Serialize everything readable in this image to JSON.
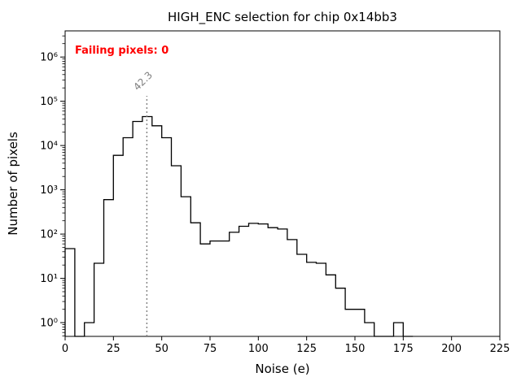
{
  "chart_data": {
    "type": "histogram",
    "title": "HIGH_ENC selection for chip 0x14bb3",
    "xlabel": "Noise (e)",
    "ylabel": "Number of pixels",
    "yscale": "log",
    "xlim": [
      0,
      225
    ],
    "ylim": [
      0.49,
      3900000
    ],
    "ylog_range": [
      -0.31,
      6.59
    ],
    "bin_start": 0,
    "bin_width": 5,
    "counts": [
      47,
      0,
      1,
      22,
      600,
      6000,
      15000,
      35000,
      45000,
      28000,
      15000,
      3500,
      700,
      180,
      60,
      70,
      70,
      110,
      150,
      175,
      170,
      140,
      130,
      75,
      35,
      23,
      22,
      12,
      6,
      2,
      2,
      1,
      0,
      0,
      1,
      0
    ],
    "xticks": [
      0,
      25,
      50,
      75,
      100,
      125,
      150,
      175,
      200,
      225
    ],
    "ytick_exponents": [
      0,
      1,
      2,
      3,
      4,
      5,
      6
    ],
    "ytick_labels": [
      "10⁰",
      "10¹",
      "10²",
      "10³",
      "10⁴",
      "10⁵",
      "10⁶"
    ],
    "vline": {
      "x": 42.3,
      "label": "42.3",
      "color": "#808080",
      "style": "dotted"
    },
    "annotation": {
      "text": "Failing pixels: 0",
      "color": "#ff0000"
    },
    "line_color": "#000000",
    "grid": false,
    "legend": null
  }
}
